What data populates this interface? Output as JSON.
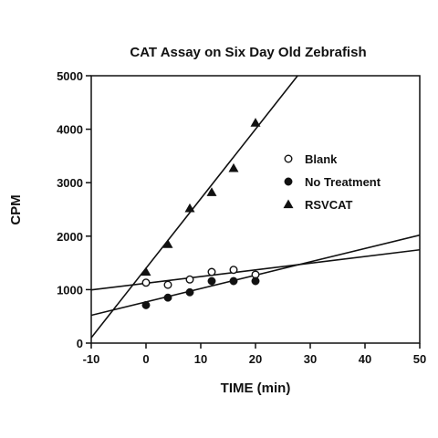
{
  "chart_data": {
    "type": "scatter",
    "title": "CAT Assay on Six Day Old Zebrafish",
    "xlabel": "TIME (min)",
    "ylabel": "CPM",
    "xlim": [
      -10,
      50
    ],
    "ylim": [
      0,
      5000
    ],
    "x_ticks": [
      -10,
      0,
      10,
      20,
      30,
      40,
      50
    ],
    "y_ticks": [
      0,
      1000,
      2000,
      3000,
      4000,
      5000
    ],
    "grid": false,
    "legend_position": "right",
    "series": [
      {
        "name": "Blank",
        "marker": "open-circle",
        "x": [
          0,
          4,
          8,
          12,
          16,
          20
        ],
        "y": [
          1130,
          1090,
          1190,
          1330,
          1370,
          1280
        ],
        "fit": {
          "slope": 12.5,
          "intercept": 1120
        }
      },
      {
        "name": "No Treatment",
        "marker": "filled-circle",
        "x": [
          0,
          4,
          8,
          12,
          16,
          20
        ],
        "y": [
          710,
          850,
          950,
          1160,
          1160,
          1160
        ],
        "fit": {
          "slope": 25,
          "intercept": 770
        }
      },
      {
        "name": "RSVCAT",
        "marker": "filled-triangle",
        "x": [
          0,
          4,
          8,
          12,
          16,
          20
        ],
        "y": [
          1330,
          1850,
          2520,
          2820,
          3270,
          4120
        ],
        "fit": {
          "slope": 130,
          "intercept": 1400
        }
      }
    ]
  }
}
